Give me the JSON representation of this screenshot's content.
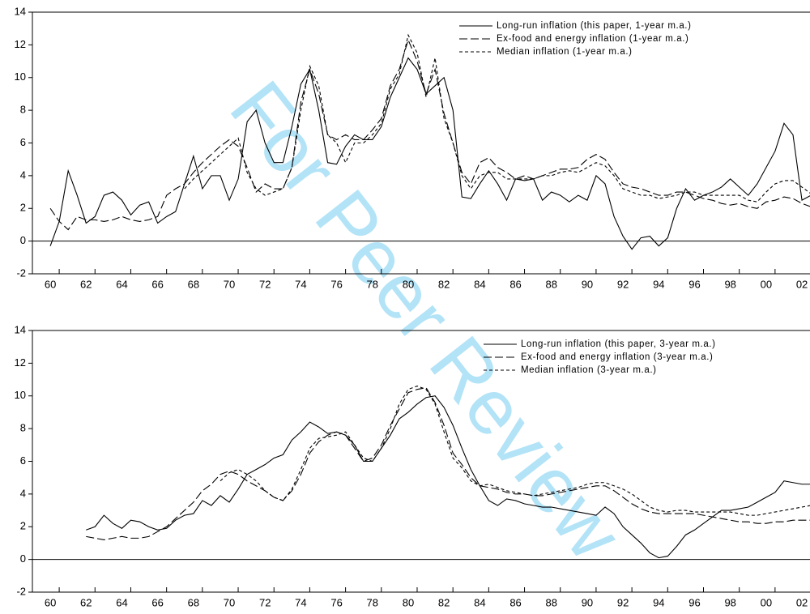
{
  "watermark": "For Peer Review",
  "chart_data": [
    {
      "type": "line",
      "x": [
        1960,
        1960.5,
        1961,
        1961.5,
        1962,
        1962.5,
        1963,
        1963.5,
        1964,
        1964.5,
        1965,
        1965.5,
        1966,
        1966.5,
        1967,
        1967.5,
        1968,
        1968.5,
        1969,
        1969.5,
        1970,
        1970.5,
        1971,
        1971.5,
        1972,
        1972.5,
        1973,
        1973.5,
        1974,
        1974.5,
        1975,
        1975.5,
        1976,
        1976.5,
        1977,
        1977.5,
        1978,
        1978.5,
        1979,
        1979.5,
        1980,
        1980.5,
        1981,
        1981.5,
        1982,
        1982.5,
        1983,
        1983.5,
        1984,
        1984.5,
        1985,
        1985.5,
        1986,
        1986.5,
        1987,
        1987.5,
        1988,
        1988.5,
        1989,
        1989.5,
        1990,
        1990.5,
        1991,
        1991.5,
        1992,
        1992.5,
        1993,
        1993.5,
        1994,
        1994.5,
        1995,
        1995.5,
        1996,
        1996.5,
        1997,
        1997.5,
        1998,
        1998.5,
        1999,
        1999.5,
        2000,
        2000.5,
        2001,
        2001.5,
        2002,
        2002.5
      ],
      "xlim": [
        1959,
        2002.45
      ],
      "xticks": [
        {
          "value": 1960,
          "label": "60"
        },
        {
          "value": 1962,
          "label": "62"
        },
        {
          "value": 1964,
          "label": "64"
        },
        {
          "value": 1966,
          "label": "66"
        },
        {
          "value": 1968,
          "label": "68"
        },
        {
          "value": 1970,
          "label": "70"
        },
        {
          "value": 1972,
          "label": "72"
        },
        {
          "value": 1974,
          "label": "74"
        },
        {
          "value": 1976,
          "label": "76"
        },
        {
          "value": 1978,
          "label": "78"
        },
        {
          "value": 1980,
          "label": "80"
        },
        {
          "value": 1982,
          "label": "82"
        },
        {
          "value": 1984,
          "label": "84"
        },
        {
          "value": 1986,
          "label": "86"
        },
        {
          "value": 1988,
          "label": "88"
        },
        {
          "value": 1990,
          "label": "90"
        },
        {
          "value": 1992,
          "label": "92"
        },
        {
          "value": 1994,
          "label": "94"
        },
        {
          "value": 1996,
          "label": "96"
        },
        {
          "value": 1998,
          "label": "98"
        },
        {
          "value": 2000,
          "label": "00"
        },
        {
          "value": 2002,
          "label": "02"
        }
      ],
      "ylim": [
        -2,
        14
      ],
      "yticks": [
        -2,
        0,
        2,
        4,
        6,
        8,
        10,
        12,
        14
      ],
      "zero_line": true,
      "legend": "upper right",
      "series": [
        {
          "name": "Long-run inflation (this paper, 1-year m.a.)",
          "color": "#000000",
          "dash": "solid",
          "values": [
            -0.3,
            1.2,
            4.3,
            2.8,
            1.1,
            1.5,
            2.8,
            3.0,
            2.5,
            1.6,
            2.2,
            2.4,
            1.1,
            1.5,
            1.8,
            3.5,
            5.2,
            3.2,
            4.0,
            4.0,
            2.5,
            3.8,
            7.3,
            8.0,
            6.0,
            4.8,
            4.8,
            7.0,
            9.6,
            10.5,
            8.0,
            4.8,
            4.7,
            5.8,
            6.5,
            6.2,
            6.2,
            7.0,
            8.8,
            10.0,
            11.2,
            10.5,
            9.0,
            9.5,
            10.0,
            8.0,
            2.7,
            2.6,
            3.5,
            4.3,
            3.5,
            2.5,
            3.8,
            3.7,
            3.8,
            2.5,
            3.0,
            2.8,
            2.4,
            2.8,
            2.5,
            4.0,
            3.5,
            1.5,
            0.3,
            -0.5,
            0.2,
            0.3,
            -0.3,
            0.2,
            2.0,
            3.2,
            2.5,
            2.8,
            3.0,
            3.3,
            3.8,
            3.3,
            2.8,
            3.5,
            4.5,
            5.5,
            7.2,
            6.5,
            2.5,
            2.8
          ]
        },
        {
          "name": "Ex-food and energy inflation (1-year m.a.)",
          "color": "#000000",
          "dash": "long",
          "values": [
            2.0,
            1.2,
            0.7,
            1.5,
            1.3,
            1.3,
            1.2,
            1.3,
            1.5,
            1.3,
            1.2,
            1.3,
            1.5,
            2.8,
            3.2,
            3.5,
            4.2,
            4.8,
            5.3,
            5.8,
            6.2,
            5.8,
            4.5,
            3.0,
            3.5,
            3.2,
            3.2,
            4.5,
            8.5,
            10.5,
            9.0,
            6.5,
            6.2,
            6.5,
            6.2,
            6.2,
            6.8,
            7.5,
            9.5,
            10.5,
            12.3,
            11.0,
            9.0,
            10.5,
            7.8,
            6.0,
            4.2,
            3.5,
            4.8,
            5.1,
            4.5,
            4.2,
            3.8,
            4.0,
            3.8,
            4.0,
            4.2,
            4.4,
            4.4,
            4.5,
            5.0,
            5.3,
            5.0,
            4.2,
            3.5,
            3.3,
            3.2,
            3.0,
            2.8,
            2.8,
            3.0,
            3.0,
            2.8,
            2.6,
            2.5,
            2.3,
            2.2,
            2.3,
            2.1,
            2.0,
            2.4,
            2.5,
            2.7,
            2.6,
            2.3,
            2.1
          ]
        },
        {
          "name": "Median inflation (1-year m.a.)",
          "color": "#000000",
          "dash": "short",
          "values": [
            null,
            null,
            null,
            null,
            null,
            null,
            null,
            null,
            null,
            null,
            null,
            null,
            null,
            null,
            null,
            3.2,
            3.8,
            4.3,
            4.8,
            5.3,
            5.8,
            6.3,
            4.2,
            3.2,
            2.8,
            3.0,
            3.2,
            4.5,
            8.0,
            10.7,
            9.5,
            6.5,
            6.0,
            4.8,
            6.0,
            6.0,
            6.5,
            7.2,
            9.3,
            10.2,
            12.6,
            11.5,
            8.8,
            11.2,
            7.5,
            6.0,
            4.0,
            3.2,
            4.0,
            4.2,
            4.2,
            3.8,
            3.8,
            3.8,
            3.8,
            4.0,
            4.0,
            4.2,
            4.3,
            4.2,
            4.5,
            4.8,
            4.6,
            4.0,
            3.2,
            3.0,
            2.8,
            2.8,
            2.6,
            2.7,
            2.8,
            3.0,
            3.0,
            2.8,
            2.8,
            2.8,
            2.8,
            2.8,
            2.5,
            2.4,
            3.0,
            3.5,
            3.7,
            3.7,
            3.3,
            2.9
          ]
        }
      ]
    },
    {
      "type": "line",
      "x": [
        1960,
        1960.5,
        1961,
        1961.5,
        1962,
        1962.5,
        1963,
        1963.5,
        1964,
        1964.5,
        1965,
        1965.5,
        1966,
        1966.5,
        1967,
        1967.5,
        1968,
        1968.5,
        1969,
        1969.5,
        1970,
        1970.5,
        1971,
        1971.5,
        1972,
        1972.5,
        1973,
        1973.5,
        1974,
        1974.5,
        1975,
        1975.5,
        1976,
        1976.5,
        1977,
        1977.5,
        1978,
        1978.5,
        1979,
        1979.5,
        1980,
        1980.5,
        1981,
        1981.5,
        1982,
        1982.5,
        1983,
        1983.5,
        1984,
        1984.5,
        1985,
        1985.5,
        1986,
        1986.5,
        1987,
        1987.5,
        1988,
        1988.5,
        1989,
        1989.5,
        1990,
        1990.5,
        1991,
        1991.5,
        1992,
        1992.5,
        1993,
        1993.5,
        1994,
        1994.5,
        1995,
        1995.5,
        1996,
        1996.5,
        1997,
        1997.5,
        1998,
        1998.5,
        1999,
        1999.5,
        2000,
        2000.5,
        2001,
        2001.5,
        2002,
        2002.5
      ],
      "xlim": [
        1959,
        2002.45
      ],
      "xticks": [
        {
          "value": 1960,
          "label": "60"
        },
        {
          "value": 1962,
          "label": "62"
        },
        {
          "value": 1964,
          "label": "64"
        },
        {
          "value": 1966,
          "label": "66"
        },
        {
          "value": 1968,
          "label": "68"
        },
        {
          "value": 1970,
          "label": "70"
        },
        {
          "value": 1972,
          "label": "72"
        },
        {
          "value": 1974,
          "label": "74"
        },
        {
          "value": 1976,
          "label": "76"
        },
        {
          "value": 1978,
          "label": "78"
        },
        {
          "value": 1980,
          "label": "80"
        },
        {
          "value": 1982,
          "label": "82"
        },
        {
          "value": 1984,
          "label": "84"
        },
        {
          "value": 1986,
          "label": "86"
        },
        {
          "value": 1988,
          "label": "88"
        },
        {
          "value": 1990,
          "label": "90"
        },
        {
          "value": 1992,
          "label": "92"
        },
        {
          "value": 1994,
          "label": "94"
        },
        {
          "value": 1996,
          "label": "96"
        },
        {
          "value": 1998,
          "label": "98"
        },
        {
          "value": 2000,
          "label": "00"
        },
        {
          "value": 2002,
          "label": "02"
        }
      ],
      "ylim": [
        -2,
        14
      ],
      "yticks": [
        -2,
        0,
        2,
        4,
        6,
        8,
        10,
        12,
        14
      ],
      "zero_line": true,
      "legend": "upper right",
      "series": [
        {
          "name": "Long-run inflation (this paper, 3-year m.a.)",
          "color": "#000000",
          "dash": "solid",
          "values": [
            null,
            null,
            null,
            null,
            1.8,
            2.0,
            2.7,
            2.2,
            1.9,
            2.4,
            2.3,
            2.0,
            1.8,
            1.9,
            2.4,
            2.7,
            2.8,
            3.6,
            3.3,
            3.9,
            3.5,
            4.3,
            5.2,
            5.5,
            5.8,
            6.2,
            6.4,
            7.3,
            7.8,
            8.4,
            8.1,
            7.7,
            7.8,
            7.6,
            7.0,
            6.0,
            6.0,
            6.8,
            7.6,
            8.6,
            9.0,
            9.5,
            9.9,
            10.0,
            9.3,
            8.2,
            6.8,
            5.5,
            4.5,
            3.6,
            3.3,
            3.7,
            3.6,
            3.4,
            3.3,
            3.2,
            3.2,
            3.1,
            3.0,
            2.9,
            2.8,
            2.7,
            3.2,
            2.8,
            2.0,
            1.5,
            1.0,
            0.4,
            0.1,
            0.2,
            0.8,
            1.5,
            1.8,
            2.2,
            2.6,
            3.0,
            3.0,
            3.1,
            3.2,
            3.5,
            3.8,
            4.1,
            4.8,
            4.7,
            4.6,
            4.6
          ]
        },
        {
          "name": "Ex-food and energy inflation (3-year m.a.)",
          "color": "#000000",
          "dash": "long",
          "values": [
            null,
            null,
            null,
            null,
            1.4,
            1.3,
            1.2,
            1.3,
            1.4,
            1.3,
            1.3,
            1.4,
            1.7,
            2.0,
            2.5,
            3.0,
            3.5,
            4.2,
            4.6,
            5.2,
            5.4,
            5.2,
            4.8,
            4.5,
            4.2,
            3.8,
            3.6,
            4.2,
            5.2,
            6.5,
            7.2,
            7.6,
            7.8,
            7.6,
            6.8,
            6.0,
            6.2,
            7.0,
            8.2,
            9.2,
            10.2,
            10.4,
            10.5,
            9.6,
            8.2,
            6.5,
            5.8,
            5.0,
            4.5,
            4.4,
            4.3,
            4.1,
            4.0,
            4.0,
            3.9,
            3.9,
            4.0,
            4.1,
            4.2,
            4.3,
            4.4,
            4.5,
            4.5,
            4.2,
            3.8,
            3.4,
            3.1,
            2.9,
            2.8,
            2.8,
            2.8,
            2.8,
            2.8,
            2.7,
            2.6,
            2.5,
            2.4,
            2.3,
            2.3,
            2.2,
            2.2,
            2.3,
            2.3,
            2.4,
            2.4,
            2.4
          ]
        },
        {
          "name": "Median inflation (3-year m.a.)",
          "color": "#000000",
          "dash": "short",
          "values": [
            null,
            null,
            null,
            null,
            null,
            null,
            null,
            null,
            null,
            null,
            null,
            null,
            null,
            null,
            null,
            null,
            null,
            null,
            null,
            4.8,
            5.3,
            5.5,
            5.2,
            4.8,
            4.2,
            3.8,
            3.6,
            4.3,
            5.5,
            6.8,
            7.4,
            7.5,
            7.6,
            7.8,
            7.0,
            6.2,
            6.0,
            6.8,
            8.0,
            9.5,
            10.4,
            10.6,
            10.4,
            9.5,
            7.8,
            6.2,
            5.6,
            4.8,
            4.5,
            4.6,
            4.4,
            4.2,
            4.1,
            4.0,
            3.9,
            4.0,
            4.1,
            4.2,
            4.3,
            4.4,
            4.6,
            4.7,
            4.7,
            4.5,
            4.3,
            4.0,
            3.6,
            3.2,
            3.0,
            2.9,
            3.0,
            3.0,
            2.9,
            2.9,
            2.9,
            2.9,
            2.9,
            2.8,
            2.7,
            2.7,
            2.8,
            2.9,
            3.0,
            3.1,
            3.2,
            3.3
          ]
        }
      ]
    }
  ]
}
